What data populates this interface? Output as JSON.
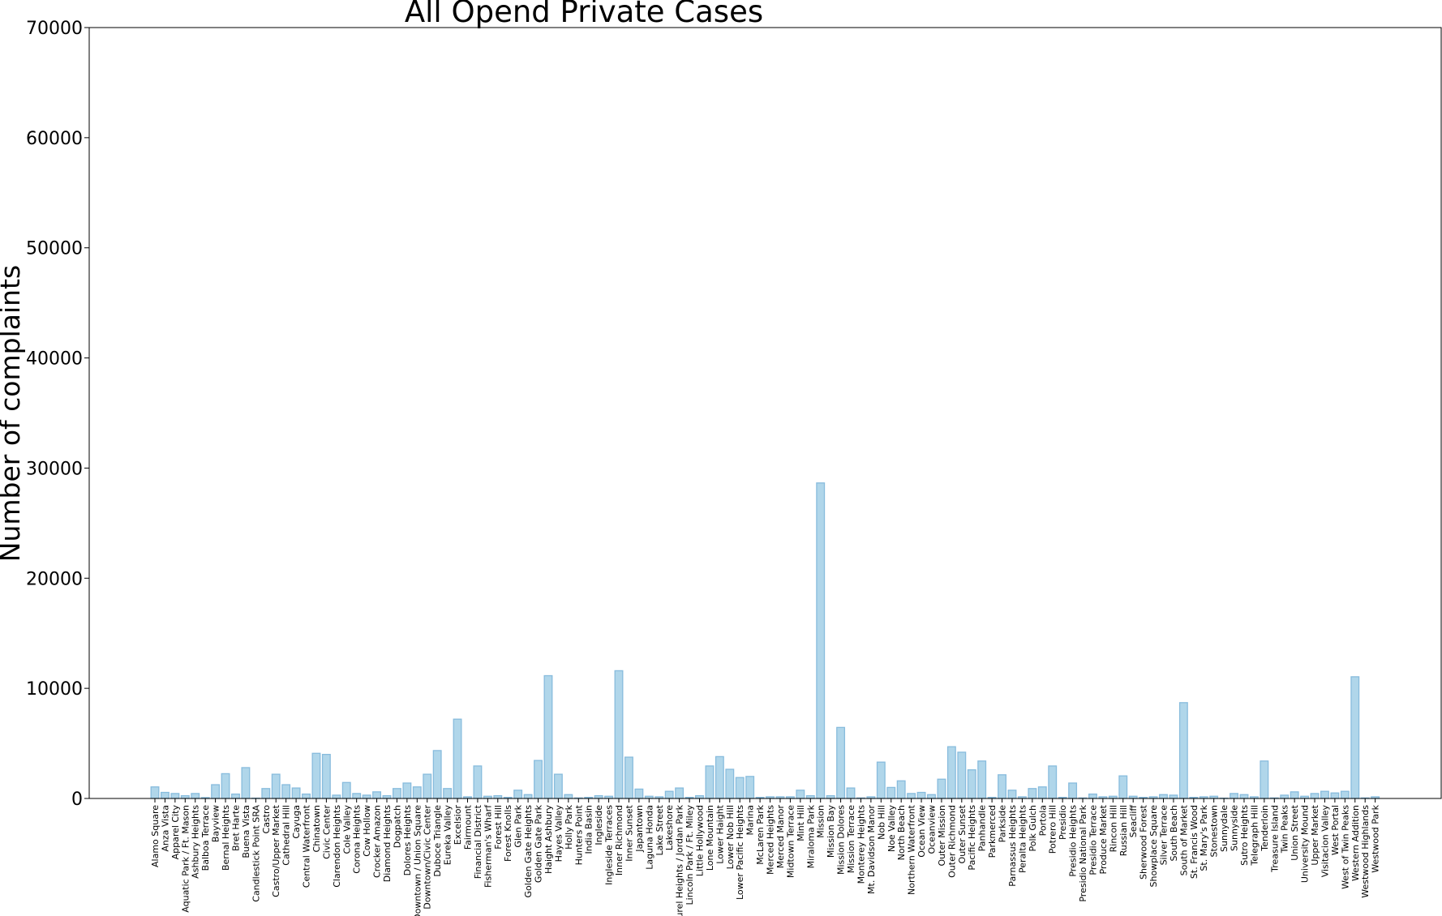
{
  "chart_data": {
    "type": "bar",
    "title": "All Opend Private Cases",
    "xlabel": "",
    "ylabel": "Number of complaints",
    "ylim": [
      0,
      70000
    ],
    "yticks": [
      0,
      10000,
      20000,
      30000,
      40000,
      50000,
      60000,
      70000
    ],
    "grid": false,
    "colors": {
      "bar_fill": "#b0d6ea",
      "bar_edge": "#88bcdd"
    },
    "categories": [
      "Alamo Square",
      "Anza Vista",
      "Apparel City",
      "Aquatic Park / Ft. Mason",
      "Ashbury Heights",
      "Balboa Terrace",
      "Bayview",
      "Bernal Heights",
      "Bret Harte",
      "Buena Vista",
      "Candlestick Point SRA",
      "Castro",
      "Castro/Upper Market",
      "Cathedral Hill",
      "Cayuga",
      "Central Waterfront",
      "Chinatown",
      "Civic Center",
      "Clarendon Heights",
      "Cole Valley",
      "Corona Heights",
      "Cow Hollow",
      "Crocker Amazon",
      "Diamond Heights",
      "Dogpatch",
      "Dolores Heights",
      "Downtown / Union Square",
      "Downtown/Civic Center",
      "Duboce Triangle",
      "Eureka Valley",
      "Excelsior",
      "Fairmount",
      "Financial District",
      "Fisherman's Wharf",
      "Forest Hill",
      "Forest Knolls",
      "Glen Park",
      "Golden Gate Heights",
      "Golden Gate Park",
      "Haight Ashbury",
      "Hayes Valley",
      "Holly Park",
      "Hunters Point",
      "India Basin",
      "Ingleside",
      "Ingleside Terraces",
      "Inner Richmond",
      "Inner Sunset",
      "Japantown",
      "Laguna Honda",
      "Lake Street",
      "Lakeshore",
      "Laurel Heights / Jordan Park",
      "Lincoln Park / Ft. Miley",
      "Little Hollywood",
      "Lone Mountain",
      "Lower Haight",
      "Lower Nob Hill",
      "Lower Pacific Heights",
      "Marina",
      "McLaren Park",
      "Merced Heights",
      "Merced Manor",
      "Midtown Terrace",
      "Mint Hill",
      "Miraloma Park",
      "Mission",
      "Mission Bay",
      "Mission Dolores",
      "Mission Terrace",
      "Monterey Heights",
      "Mt. Davidson Manor",
      "Nob Hill",
      "Noe Valley",
      "North Beach",
      "Northern Waterfront",
      "Ocean View",
      "Oceanview",
      "Outer Mission",
      "Outer Richmond",
      "Outer Sunset",
      "Pacific Heights",
      "Panhandle",
      "Parkmerced",
      "Parkside",
      "Parnassus Heights",
      "Peralta Heights",
      "Polk Gulch",
      "Portola",
      "Potrero Hill",
      "Presidio",
      "Presidio Heights",
      "Presidio National Park",
      "Presidio Terrace",
      "Produce Market",
      "Rincon Hill",
      "Russian Hill",
      "Seacliff",
      "Sherwood Forest",
      "Showplace Square",
      "Silver Terrace",
      "South Beach",
      "South of Market",
      "St. Francis Wood",
      "St. Mary's Park",
      "Stonestown",
      "Sunnydale",
      "Sunnyside",
      "Sutro Heights",
      "Telegraph Hill",
      "Tenderloin",
      "Treasure Island",
      "Twin Peaks",
      "Union Street",
      "University Mound",
      "Upper Market",
      "Visitacion Valley",
      "West Portal",
      "West of Twin Peaks",
      "Western Addition",
      "Westwood Highlands",
      "Westwood Park"
    ],
    "values": [
      1050,
      550,
      450,
      250,
      450,
      80,
      1250,
      2250,
      400,
      2800,
      30,
      900,
      2200,
      1250,
      950,
      400,
      4100,
      4000,
      300,
      1450,
      450,
      300,
      600,
      250,
      900,
      1400,
      1050,
      2200,
      4350,
      900,
      7200,
      150,
      2950,
      200,
      250,
      100,
      750,
      350,
      3450,
      11150,
      2200,
      350,
      50,
      100,
      250,
      200,
      11600,
      3750,
      850,
      200,
      150,
      650,
      950,
      100,
      250,
      2950,
      3800,
      2650,
      1900,
      2000,
      100,
      150,
      150,
      150,
      750,
      250,
      28650,
      250,
      6450,
      950,
      50,
      150,
      3300,
      1000,
      1600,
      450,
      550,
      350,
      1750,
      4700,
      4200,
      2600,
      3400,
      100,
      2150,
      750,
      150,
      900,
      1050,
      2950,
      100,
      1400,
      50,
      400,
      150,
      200,
      2050,
      200,
      100,
      150,
      350,
      300,
      8700,
      100,
      150,
      200,
      30,
      450,
      350,
      150,
      3400,
      50,
      300,
      600,
      200,
      450,
      650,
      500,
      650,
      11050,
      50,
      150
    ]
  }
}
